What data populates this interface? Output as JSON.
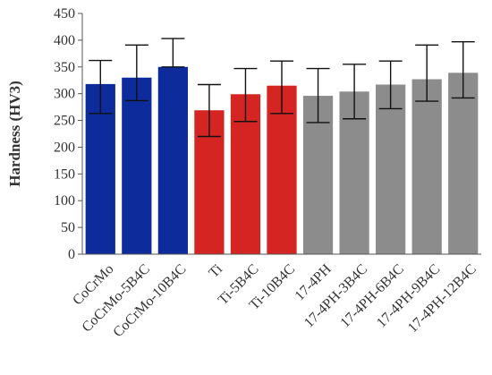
{
  "chart_data": {
    "type": "bar",
    "title": "",
    "xlabel": "",
    "ylabel": "Hardness (HV3)",
    "ylim": [
      0,
      450
    ],
    "yticks": [
      0,
      50,
      100,
      150,
      200,
      250,
      300,
      350,
      400,
      450
    ],
    "grid": false,
    "legend": "none",
    "categories": [
      "CoCrMo",
      "CoCrMo-5B4C",
      "CoCrMo-10B4C",
      "Ti",
      "Ti-5B4C",
      "Ti-10B4C",
      "17-4PH",
      "17-4PH-3B4C",
      "17-4PH-6B4C",
      "17-4PH-9B4C",
      "17-4PH-12B4C"
    ],
    "values": [
      318,
      330,
      350,
      269,
      299,
      315,
      296,
      304,
      317,
      327,
      339
    ],
    "error_upper": [
      362,
      391,
      403,
      317,
      347,
      361,
      347,
      355,
      361,
      391,
      397
    ],
    "error_lower": [
      263,
      287,
      350,
      220,
      248,
      263,
      246,
      253,
      272,
      286,
      292
    ],
    "bar_colors": [
      "#0d2b9a",
      "#0d2b9a",
      "#0d2b9a",
      "#d42523",
      "#d42523",
      "#d42523",
      "#8c8c8c",
      "#8c8c8c",
      "#8c8c8c",
      "#8c8c8c",
      "#8c8c8c"
    ]
  }
}
